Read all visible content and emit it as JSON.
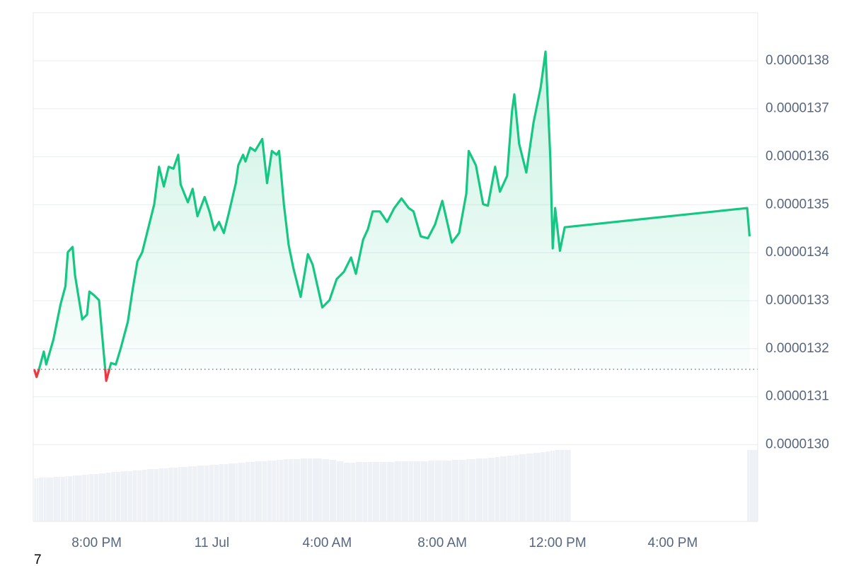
{
  "chart_data": {
    "type": "line",
    "x": [
      "07-10T17:50",
      "07-10T17:55",
      "07-10T18:00",
      "07-10T18:10",
      "07-10T18:15",
      "07-10T18:30",
      "07-10T18:45",
      "07-10T18:55",
      "07-10T19:00",
      "07-10T19:10",
      "07-10T19:15",
      "07-10T19:30",
      "07-10T19:40",
      "07-10T19:45",
      "07-10T19:55",
      "07-10T20:05",
      "07-10T20:20",
      "07-10T20:30",
      "07-10T20:40",
      "07-10T20:50",
      "07-10T21:05",
      "07-10T21:15",
      "07-10T21:25",
      "07-10T21:35",
      "07-10T21:45",
      "07-10T22:00",
      "07-10T22:10",
      "07-10T22:20",
      "07-10T22:30",
      "07-10T22:40",
      "07-10T22:50",
      "07-10T22:55",
      "07-10T23:10",
      "07-10T23:20",
      "07-10T23:30",
      "07-10T23:45",
      "07-10T23:55",
      "07-11T00:05",
      "07-11T00:15",
      "07-11T00:25",
      "07-11T00:35",
      "07-11T00:50",
      "07-11T00:55",
      "07-11T01:05",
      "07-11T01:10",
      "07-11T01:20",
      "07-11T01:30",
      "07-11T01:45",
      "07-11T01:55",
      "07-11T02:05",
      "07-11T02:15",
      "07-11T02:20",
      "07-11T02:30",
      "07-11T02:40",
      "07-11T02:50",
      "07-11T03:05",
      "07-11T03:20",
      "07-11T03:30",
      "07-11T03:50",
      "07-11T04:05",
      "07-11T04:20",
      "07-11T04:35",
      "07-11T04:50",
      "07-11T05:00",
      "07-11T05:15",
      "07-11T05:25",
      "07-11T05:35",
      "07-11T05:50",
      "07-11T06:05",
      "07-11T06:20",
      "07-11T06:35",
      "07-11T06:50",
      "07-11T07:00",
      "07-11T07:15",
      "07-11T07:30",
      "07-11T07:45",
      "07-11T08:00",
      "07-11T08:20",
      "07-11T08:35",
      "07-11T08:50",
      "07-11T08:55",
      "07-11T09:10",
      "07-11T09:25",
      "07-11T09:35",
      "07-11T09:50",
      "07-11T10:00",
      "07-11T10:15",
      "07-11T10:25",
      "07-11T10:30",
      "07-11T10:40",
      "07-11T10:55",
      "07-11T11:10",
      "07-11T11:25",
      "07-11T11:35",
      "07-11T11:45",
      "07-11T11:50",
      "07-11T11:55",
      "07-11T12:05",
      "07-11T12:15",
      "07-11T18:35",
      "07-11T18:40"
    ],
    "values": [
      1.3157e-05,
      1.3141e-05,
      1.3157e-05,
      1.3194e-05,
      1.3167e-05,
      1.3219e-05,
      1.3293e-05,
      1.333e-05,
      1.3401e-05,
      1.3412e-05,
      1.3353e-05,
      1.3261e-05,
      1.3271e-05,
      1.3319e-05,
      1.3311e-05,
      1.3301e-05,
      1.3133e-05,
      1.317e-05,
      1.3167e-05,
      1.32e-05,
      1.3256e-05,
      1.3323e-05,
      1.3382e-05,
      1.3401e-05,
      1.3441e-05,
      1.3501e-05,
      1.3579e-05,
      1.3538e-05,
      1.3579e-05,
      1.3575e-05,
      1.3604e-05,
      1.3542e-05,
      1.3505e-05,
      1.3533e-05,
      1.3476e-05,
      1.3516e-05,
      1.3486e-05,
      1.3447e-05,
      1.3464e-05,
      1.3441e-05,
      1.3481e-05,
      1.3545e-05,
      1.3582e-05,
      1.3604e-05,
      1.359e-05,
      1.3619e-05,
      1.3612e-05,
      1.3637e-05,
      1.3545e-05,
      1.3612e-05,
      1.3604e-05,
      1.3612e-05,
      1.3501e-05,
      1.3416e-05,
      1.3367e-05,
      1.3308e-05,
      1.3397e-05,
      1.3375e-05,
      1.3286e-05,
      1.3301e-05,
      1.3345e-05,
      1.336e-05,
      1.339e-05,
      1.3356e-05,
      1.3427e-05,
      1.3449e-05,
      1.3486e-05,
      1.3486e-05,
      1.3464e-05,
      1.3493e-05,
      1.3513e-05,
      1.3493e-05,
      1.3486e-05,
      1.3434e-05,
      1.343e-05,
      1.3459e-05,
      1.3508e-05,
      1.3421e-05,
      1.3441e-05,
      1.3523e-05,
      1.3612e-05,
      1.3582e-05,
      1.3501e-05,
      1.3498e-05,
      1.3579e-05,
      1.3527e-05,
      1.356e-05,
      1.3693e-05,
      1.373e-05,
      1.3627e-05,
      1.3567e-05,
      1.3671e-05,
      1.3745e-05,
      1.3819e-05,
      1.3597e-05,
      1.3409e-05,
      1.3493e-05,
      1.3404e-05,
      1.3453e-05,
      1.3493e-05,
      1.3434e-05
    ],
    "volume": [
      61,
      61,
      62,
      62,
      62,
      63,
      63,
      64,
      64,
      65,
      65,
      66,
      66,
      67,
      67,
      68,
      69,
      70,
      70,
      71,
      71,
      72,
      72,
      73,
      74,
      74,
      75,
      75,
      76,
      76,
      77,
      77,
      78,
      78,
      79,
      79,
      80,
      80,
      81,
      81,
      82,
      82,
      83,
      83,
      84,
      84,
      85,
      85,
      86,
      86,
      87,
      87,
      88,
      88,
      88,
      89,
      89,
      89,
      88,
      87,
      85,
      83,
      83,
      84,
      84,
      84,
      84,
      84,
      84,
      85,
      85,
      85,
      85,
      85,
      86,
      86,
      86,
      87,
      87,
      88,
      88,
      89,
      89,
      90,
      91,
      92,
      93,
      93,
      94,
      95,
      96,
      97,
      98,
      99,
      100,
      100,
      101,
      101,
      101,
      101,
      101
    ],
    "baseline": 1.3157e-05,
    "color": "#16c784",
    "down_color": "#ea3943",
    "volume_color": "#eef1f5",
    "xlim": [
      "07-10T17:48",
      "07-11T18:57"
    ],
    "xticks": [
      {
        "value": "07-10T20:00",
        "label": "8:00 PM"
      },
      {
        "value": "07-11T00:00",
        "label": "11 Jul"
      },
      {
        "value": "07-11T04:00",
        "label": "4:00 AM"
      },
      {
        "value": "07-11T08:00",
        "label": "8:00 AM"
      },
      {
        "value": "07-11T12:00",
        "label": "12:00 PM"
      },
      {
        "value": "07-11T16:00",
        "label": "4:00 PM"
      }
    ],
    "ylim": [
      1.284e-05,
      1.39e-05
    ],
    "yticks": [
      {
        "value": 1.3e-05,
        "label": "0.0000130"
      },
      1.31e-05,
      1.32e-05,
      1.33e-05,
      1.34e-05,
      1.35e-05,
      1.36e-05,
      1.37e-05,
      1.38e-05
    ],
    "grid": true,
    "footer_text": "7"
  }
}
